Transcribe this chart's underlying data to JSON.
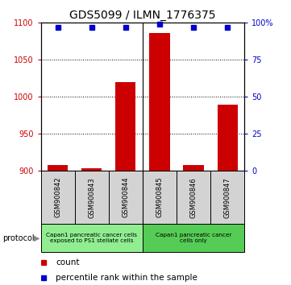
{
  "title": "GDS5099 / ILMN_1776375",
  "samples": [
    "GSM900842",
    "GSM900843",
    "GSM900844",
    "GSM900845",
    "GSM900846",
    "GSM900847"
  ],
  "counts": [
    908,
    904,
    1020,
    1086,
    908,
    990
  ],
  "percentile_ranks": [
    97,
    97,
    97,
    99,
    97,
    97
  ],
  "ylim_left": [
    900,
    1100
  ],
  "ylim_right": [
    0,
    100
  ],
  "yticks_left": [
    900,
    950,
    1000,
    1050,
    1100
  ],
  "yticks_right": [
    0,
    25,
    50,
    75,
    100
  ],
  "bar_color": "#cc0000",
  "dot_color": "#0000cc",
  "title_fontsize": 10,
  "legend_count_color": "#cc0000",
  "legend_dot_color": "#0000cc",
  "background_color": "#ffffff",
  "panel_color": "#d3d3d3",
  "group1_color": "#90ee90",
  "group2_color": "#55cc55",
  "group1_label": "Capan1 pancreatic cancer cells\nexposed to PS1 stellate cells",
  "group2_label": "Capan1 pancreatic cancer\ncells only"
}
